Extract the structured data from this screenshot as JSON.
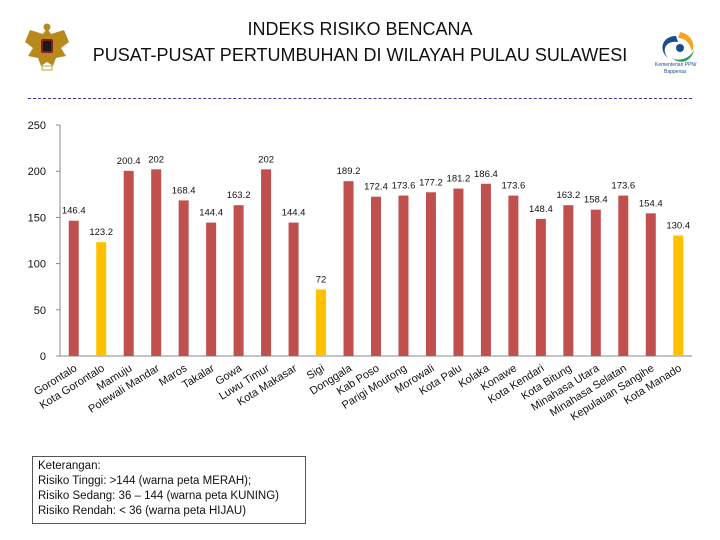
{
  "header": {
    "title_line1": "INDEKS RISIKO BENCANA",
    "title_line2": "PUSAT-PUSAT PERTUMBUHAN DI WILAYAH PULAU SULAWESI",
    "logo_text_line1": "Kementerian PPN/",
    "logo_text_line2": "Bappenas"
  },
  "colors": {
    "high": "#c0504d",
    "medium": "#ffc000",
    "axis": "#888888",
    "divider": "#3a3aa0"
  },
  "chart_data": {
    "type": "bar",
    "ylim": [
      0,
      250
    ],
    "yticks": [
      0,
      50,
      100,
      150,
      200,
      250
    ],
    "grid": false,
    "categories": [
      {
        "lines": [
          "Gorontalo"
        ],
        "value": 146.4,
        "label": "146.4",
        "risk": "high"
      },
      {
        "lines": [
          "Kota Gorontalo"
        ],
        "value": 123.2,
        "label": "123.2",
        "risk": "medium"
      },
      {
        "lines": [
          "Mamuju"
        ],
        "value": 200.4,
        "label": "200.4",
        "risk": "high"
      },
      {
        "lines": [
          "Polewali Mandar"
        ],
        "value": 202,
        "label": "202",
        "risk": "high"
      },
      {
        "lines": [
          "Maros"
        ],
        "value": 168.4,
        "label": "168.4",
        "risk": "high"
      },
      {
        "lines": [
          "Takalar"
        ],
        "value": 144.4,
        "label": "144.4",
        "risk": "high"
      },
      {
        "lines": [
          "Gowa"
        ],
        "value": 163.2,
        "label": "163.2",
        "risk": "high"
      },
      {
        "lines": [
          "Luwu Timur"
        ],
        "value": 202,
        "label": "202",
        "risk": "high"
      },
      {
        "lines": [
          "Kota Makasar"
        ],
        "value": 144.4,
        "label": "144.4",
        "risk": "high"
      },
      {
        "lines": [
          "Sigi"
        ],
        "value": 72,
        "label": "72",
        "risk": "medium"
      },
      {
        "lines": [
          "Donggala"
        ],
        "value": 189.2,
        "label": "189.2",
        "risk": "high"
      },
      {
        "lines": [
          "Kab Poso"
        ],
        "value": 172.4,
        "label": "172.4",
        "risk": "high"
      },
      {
        "lines": [
          "Parigi Moutong"
        ],
        "value": 173.6,
        "label": "173.6",
        "risk": "high"
      },
      {
        "lines": [
          "Morowali"
        ],
        "value": 177.2,
        "label": "177.2",
        "risk": "high"
      },
      {
        "lines": [
          "Kota Palu"
        ],
        "value": 181.2,
        "label": "181.2",
        "risk": "high"
      },
      {
        "lines": [
          "Kolaka"
        ],
        "value": 186.4,
        "label": "186.4",
        "risk": "high"
      },
      {
        "lines": [
          "Konawe"
        ],
        "value": 173.6,
        "label": "173.6",
        "risk": "high"
      },
      {
        "lines": [
          "Kota Kendari"
        ],
        "value": 148.4,
        "label": "148.4",
        "risk": "high"
      },
      {
        "lines": [
          "Kota Bitung"
        ],
        "value": 163.2,
        "label": "163.2",
        "risk": "high"
      },
      {
        "lines": [
          "Minahasa Utara"
        ],
        "value": 158.4,
        "label": "158.4",
        "risk": "high"
      },
      {
        "lines": [
          "Minahasa Selatan"
        ],
        "value": 173.6,
        "label": "173.6",
        "risk": "high"
      },
      {
        "lines": [
          "Kepulauan Sangihe"
        ],
        "value": 154.4,
        "label": "154.4",
        "risk": "high"
      },
      {
        "lines": [
          "Kota Manado"
        ],
        "value": 130.4,
        "label": "130.4",
        "risk": "medium"
      }
    ]
  },
  "legend": {
    "heading": "Keterangan:",
    "items": [
      "Risiko Tinggi: >144 (warna peta MERAH);",
      "Risiko Sedang: 36 – 144 (warna peta KUNING)",
      "Risiko Rendah: < 36 (warna peta HIJAU)"
    ]
  }
}
